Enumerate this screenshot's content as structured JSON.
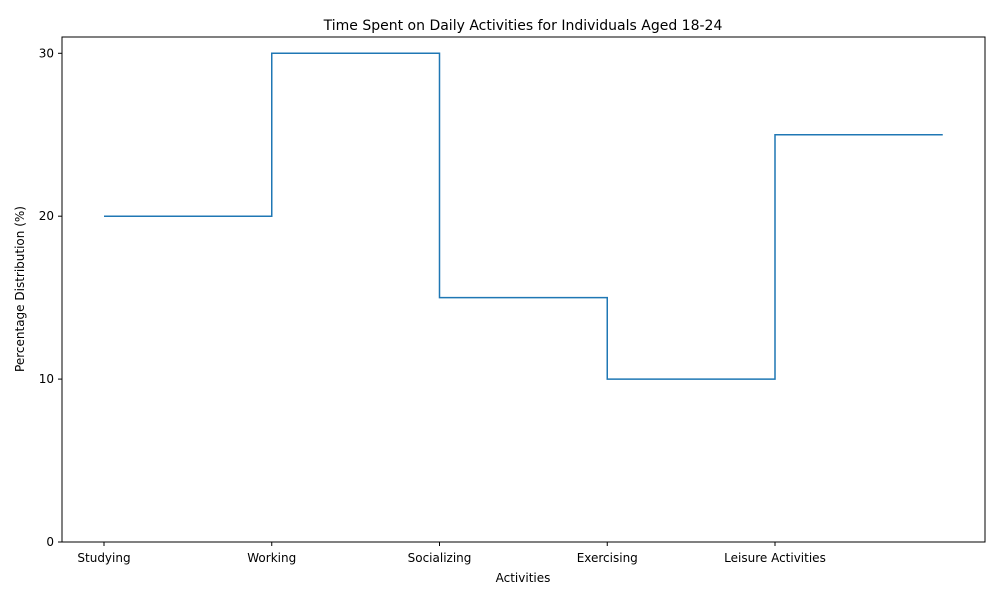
{
  "chart_data": {
    "type": "line",
    "step": "post",
    "title": "Time Spent on Daily Activities for Individuals Aged 18-24",
    "xlabel": "Activities",
    "ylabel": "Percentage Distribution (%)",
    "categories": [
      "Studying",
      "Working",
      "Socializing",
      "Exercising",
      "Leisure Activities"
    ],
    "values": [
      20,
      30,
      15,
      10,
      25
    ],
    "yticks": [
      0,
      10,
      20,
      30
    ],
    "ylim": [
      0,
      31
    ],
    "grid": false,
    "line_color": "#1f77b4"
  }
}
